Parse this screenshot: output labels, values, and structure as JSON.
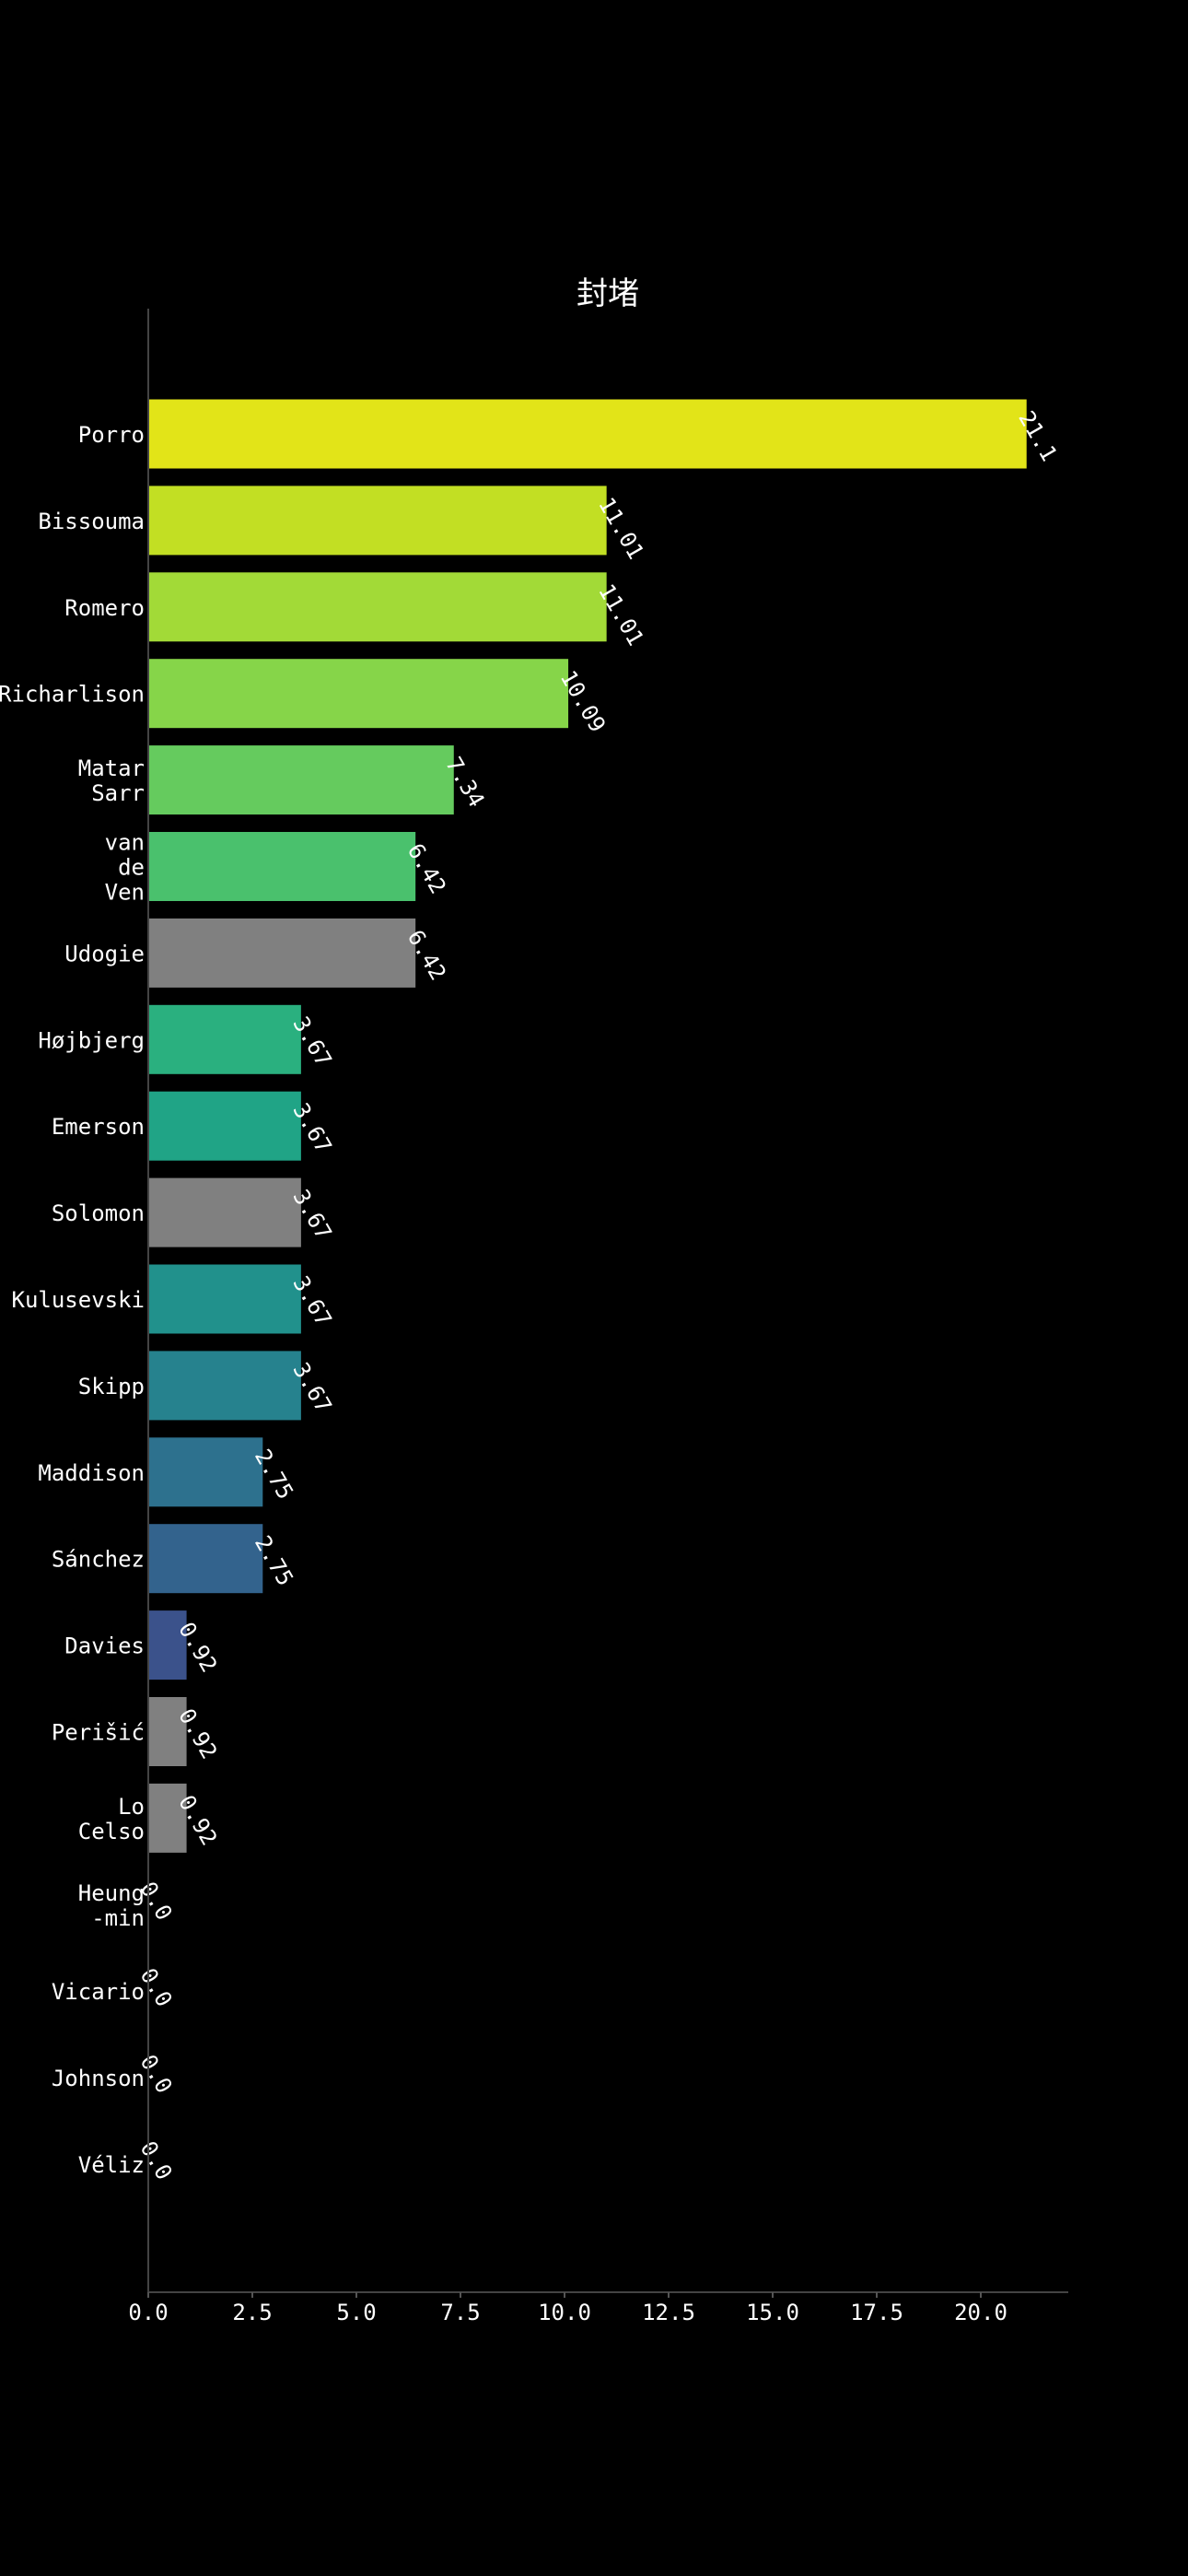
{
  "chart_data": {
    "type": "bar",
    "orientation": "horizontal",
    "title": "封堵",
    "xlabel": "",
    "ylabel": "",
    "xlim": [
      0,
      22.1
    ],
    "xticks": [
      "0.0",
      "2.5",
      "5.0",
      "7.5",
      "10.0",
      "12.5",
      "15.0",
      "17.5",
      "20.0"
    ],
    "grid": false,
    "categories": [
      [
        "Porro"
      ],
      [
        "Bissouma"
      ],
      [
        "Romero"
      ],
      [
        "Richarlison"
      ],
      [
        "Matar",
        "Sarr"
      ],
      [
        "van",
        "de",
        "Ven"
      ],
      [
        "Udogie"
      ],
      [
        "Højbjerg"
      ],
      [
        "Emerson"
      ],
      [
        "Solomon"
      ],
      [
        "Kulusevski"
      ],
      [
        "Skipp"
      ],
      [
        "Maddison"
      ],
      [
        "Sánchez"
      ],
      [
        "Davies"
      ],
      [
        "Perišić"
      ],
      [
        "Lo",
        "Celso"
      ],
      [
        "Heung",
        "-min"
      ],
      [
        "Vicario"
      ],
      [
        "Johnson"
      ],
      [
        "Véliz"
      ]
    ],
    "values": [
      21.1,
      11.01,
      11.01,
      10.09,
      7.34,
      6.42,
      6.42,
      3.67,
      3.67,
      3.67,
      3.67,
      3.67,
      2.75,
      2.75,
      0.92,
      0.92,
      0.92,
      0.0,
      0.0,
      0.0,
      0.0
    ],
    "value_labels": [
      "21.1",
      "11.01",
      "11.01",
      "10.09",
      "7.34",
      "6.42",
      "6.42",
      "3.67",
      "3.67",
      "3.67",
      "3.67",
      "3.67",
      "2.75",
      "2.75",
      "0.92",
      "0.92",
      "0.92",
      "0.0",
      "0.0",
      "0.0",
      "0.0"
    ],
    "colors": [
      "#e2e418",
      "#c2df23",
      "#a2da37",
      "#86d549",
      "#65cb5e",
      "#4ac16d",
      "#808080",
      "#2ab07f",
      "#20a486",
      "#808080",
      "#21918c",
      "#26828e",
      "#2d718e",
      "#33638d",
      "#3b528b",
      "#808080",
      "#808080",
      "#46327e",
      "#482475",
      "#481467",
      "#440154"
    ]
  }
}
